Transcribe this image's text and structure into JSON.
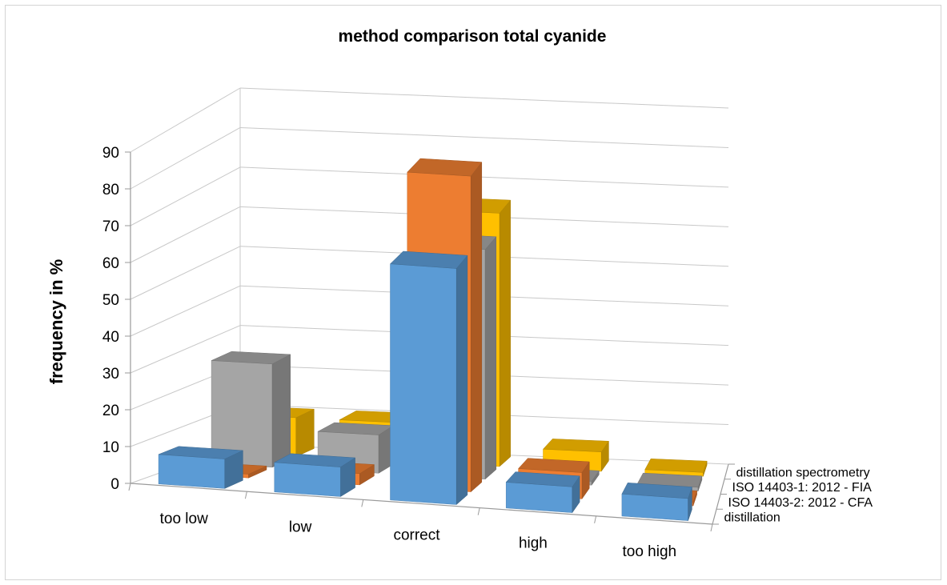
{
  "chart_data": {
    "type": "bar",
    "title": "method comparison total cyanide",
    "xlabel": "",
    "ylabel": "frequency in %",
    "ylim": [
      0,
      90
    ],
    "yticks": [
      "0",
      "10",
      "20",
      "30",
      "40",
      "50",
      "60",
      "70",
      "80",
      "90"
    ],
    "categories": [
      "too low",
      "low",
      "correct",
      "high",
      "too high"
    ],
    "series": [
      {
        "name": "distillation",
        "color": "#5b9bd5",
        "values": [
          8,
          8,
          64,
          7,
          6
        ]
      },
      {
        "name": "ISO 14403-2: 2012 - CFA",
        "color": "#ed7d31",
        "values": [
          1,
          3,
          84,
          7,
          1
        ]
      },
      {
        "name": "ISO 14403-1: 2012 - FIA",
        "color": "#a5a5a5",
        "values": [
          27,
          10,
          60,
          1,
          1
        ]
      },
      {
        "name": "distillation spectrometry",
        "color": "#ffc000",
        "values": [
          10,
          10,
          65,
          5,
          1
        ]
      }
    ],
    "grid": true,
    "style": "3d-column"
  }
}
